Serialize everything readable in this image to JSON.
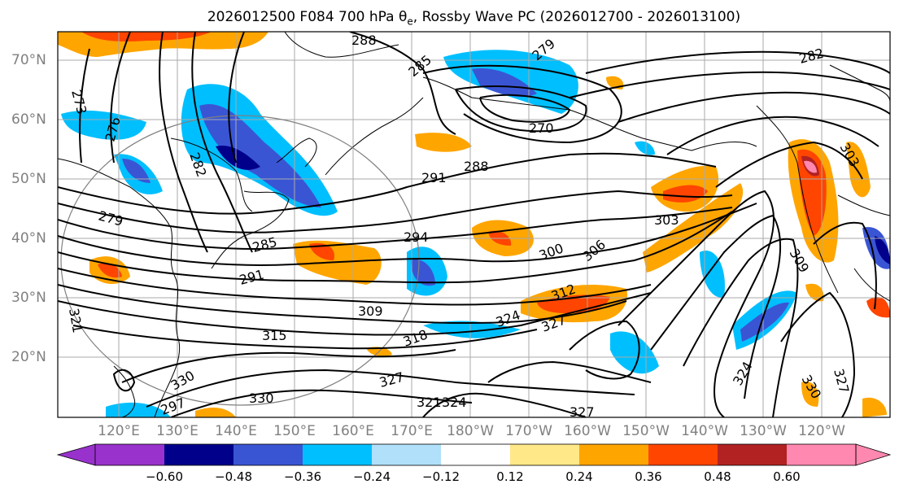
{
  "title": {
    "text": "2026012500 F084 700 hPa θ",
    "sub": "e",
    "rest": ", Rossby Wave PC (2026012700 - 2026013100)"
  },
  "lat_labels": [
    "70°N",
    "60°N",
    "50°N",
    "40°N",
    "30°N",
    "20°N"
  ],
  "lon_labels": [
    "120°E",
    "130°E",
    "140°E",
    "150°E",
    "160°E",
    "170°E",
    "180°W",
    "170°W",
    "160°W",
    "150°W",
    "140°W",
    "130°W",
    "120°W"
  ],
  "contour_labels": [
    "288",
    "285",
    "279",
    "273",
    "270",
    "276",
    "282",
    "288",
    "291",
    "294",
    "279",
    "285",
    "291",
    "297",
    "309",
    "315",
    "318",
    "321",
    "324",
    "327",
    "330",
    "300",
    "306",
    "303",
    "312",
    "324",
    "327",
    "282",
    "303",
    "309",
    "330",
    "327",
    "324",
    "321",
    "327",
    "330"
  ],
  "colorbar": {
    "ticks": [
      "−0.60",
      "−0.48",
      "−0.36",
      "−0.24",
      "−0.12",
      "0.12",
      "0.24",
      "0.36",
      "0.48",
      "0.60"
    ],
    "colors": [
      "#9932cc",
      "#00008b",
      "#3a55d4",
      "#00bfff",
      "#b0e0fa",
      "#ffffff",
      "#ffe887",
      "#ffa500",
      "#ff4500",
      "#b22222",
      "#ff88b0"
    ]
  },
  "colors": {
    "neg_strong": "#00008b",
    "neg_mid": "#3a55d4",
    "neg_light": "#00bfff",
    "neg_pale": "#b0e0fa",
    "pos_pale": "#ffe887",
    "pos_light": "#ffa500",
    "pos_mid": "#ff4500",
    "pos_strong": "#b22222",
    "pos_max": "#ff88b0"
  }
}
